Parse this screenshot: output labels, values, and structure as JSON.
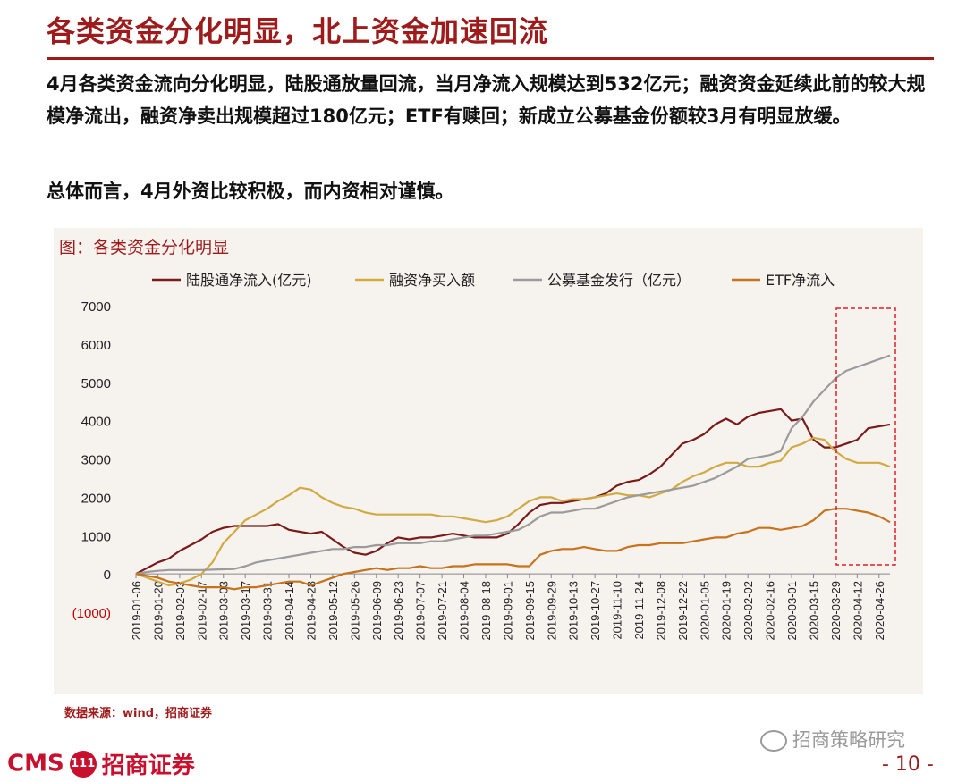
{
  "header": {
    "title": "各类资金分化明显，北上资金加速回流"
  },
  "body": {
    "paragraph1": "4月各类资金流向分化明显，陆股通放量回流，当月净流入规模达到532亿元；融资资金延续此前的较大规模净流出，融资净卖出规模超过180亿元；ETF有赎回；新成立公募基金份额较3月有明显放缓。",
    "paragraph2": "总体而言，4月外资比较积极，而内资相对谨慎。"
  },
  "chart_caption": "图：各类资金分化明显",
  "source": "数据来源：wind，招商证券",
  "watermark": "招商策略研究",
  "logo": {
    "cms": "CMS",
    "badge": "111",
    "name": "招商证券"
  },
  "page_number": "- 10 -",
  "colors": {
    "accent": "#9e1b1b",
    "series1": "#7a1a1a",
    "series2": "#d2aa42",
    "series3": "#9b9b9b",
    "series4": "#c8721c",
    "highlight_box": "#e0202a"
  },
  "chart_data": {
    "type": "line",
    "title": "",
    "xlabel": "",
    "ylabel": "",
    "ylim": [
      -1000,
      7000
    ],
    "yticks": [
      "(1000)",
      "0",
      "1000",
      "2000",
      "3000",
      "4000",
      "5000",
      "6000",
      "7000"
    ],
    "ytick_values": [
      -1000,
      0,
      1000,
      2000,
      3000,
      4000,
      5000,
      6000,
      7000
    ],
    "x_tick_labels": [
      "2019-01-06",
      "2019-01-20",
      "2019-02-03",
      "2019-02-17",
      "2019-03-03",
      "2019-03-17",
      "2019-03-31",
      "2019-04-14",
      "2019-04-28",
      "2019-05-12",
      "2019-05-26",
      "2019-06-09",
      "2019-06-23",
      "2019-07-07",
      "2019-07-21",
      "2019-08-04",
      "2019-08-18",
      "2019-09-01",
      "2019-09-15",
      "2019-09-29",
      "2019-10-13",
      "2019-10-27",
      "2019-11-10",
      "2019-11-24",
      "2019-12-08",
      "2019-12-22",
      "2020-01-05",
      "2020-01-19",
      "2020-02-02",
      "2020-02-16",
      "2020-03-01",
      "2020-03-15",
      "2020-03-29",
      "2020-04-12",
      "2020-04-26"
    ],
    "x": [
      "2019-01-06",
      "2019-01-13",
      "2019-01-20",
      "2019-01-27",
      "2019-02-03",
      "2019-02-10",
      "2019-02-17",
      "2019-02-24",
      "2019-03-03",
      "2019-03-10",
      "2019-03-17",
      "2019-03-24",
      "2019-03-31",
      "2019-04-07",
      "2019-04-14",
      "2019-04-21",
      "2019-04-28",
      "2019-05-05",
      "2019-05-12",
      "2019-05-19",
      "2019-05-26",
      "2019-06-02",
      "2019-06-09",
      "2019-06-16",
      "2019-06-23",
      "2019-06-30",
      "2019-07-07",
      "2019-07-14",
      "2019-07-21",
      "2019-07-28",
      "2019-08-04",
      "2019-08-11",
      "2019-08-18",
      "2019-08-25",
      "2019-09-01",
      "2019-09-08",
      "2019-09-15",
      "2019-09-22",
      "2019-09-29",
      "2019-10-06",
      "2019-10-13",
      "2019-10-20",
      "2019-10-27",
      "2019-11-03",
      "2019-11-10",
      "2019-11-17",
      "2019-11-24",
      "2019-12-01",
      "2019-12-08",
      "2019-12-15",
      "2019-12-22",
      "2019-12-29",
      "2020-01-05",
      "2020-01-12",
      "2020-01-19",
      "2020-01-26",
      "2020-02-02",
      "2020-02-09",
      "2020-02-16",
      "2020-02-23",
      "2020-03-01",
      "2020-03-08",
      "2020-03-15",
      "2020-03-22",
      "2020-03-29",
      "2020-04-05",
      "2020-04-12",
      "2020-04-19",
      "2020-04-26",
      "2020-05-03"
    ],
    "series": [
      {
        "name": "陆股通净流入(亿元)",
        "color": "#7a1a1a",
        "values": [
          0,
          150,
          300,
          400,
          600,
          750,
          900,
          1100,
          1200,
          1250,
          1250,
          1250,
          1250,
          1300,
          1150,
          1100,
          1050,
          1100,
          900,
          700,
          550,
          500,
          600,
          800,
          950,
          900,
          950,
          950,
          1000,
          1050,
          1000,
          950,
          950,
          950,
          1050,
          1300,
          1600,
          1800,
          1850,
          1850,
          1900,
          1950,
          2000,
          2100,
          2300,
          2400,
          2450,
          2600,
          2800,
          3100,
          3400,
          3500,
          3650,
          3900,
          4050,
          3900,
          4100,
          4200,
          4250,
          4300,
          4000,
          4050,
          3500,
          3300,
          3300,
          3400,
          3500,
          3800,
          3850,
          3900
        ]
      },
      {
        "name": "融资净买入额",
        "color": "#d2aa42",
        "values": [
          0,
          -100,
          -200,
          -300,
          -250,
          -150,
          0,
          300,
          800,
          1100,
          1400,
          1550,
          1700,
          1900,
          2050,
          2250,
          2200,
          2000,
          1850,
          1750,
          1700,
          1600,
          1550,
          1550,
          1550,
          1550,
          1550,
          1550,
          1500,
          1500,
          1450,
          1400,
          1350,
          1400,
          1500,
          1700,
          1900,
          2000,
          2000,
          1900,
          1950,
          1950,
          2000,
          2050,
          2100,
          2050,
          2050,
          2000,
          2100,
          2200,
          2400,
          2550,
          2650,
          2800,
          2900,
          2900,
          2800,
          2800,
          2900,
          2950,
          3300,
          3400,
          3550,
          3500,
          3200,
          3000,
          2900,
          2900,
          2900,
          2800
        ]
      },
      {
        "name": "公募基金发行（亿元）",
        "color": "#9b9b9b",
        "values": [
          0,
          50,
          80,
          100,
          100,
          100,
          100,
          110,
          120,
          130,
          200,
          300,
          350,
          400,
          450,
          500,
          550,
          600,
          650,
          650,
          700,
          700,
          750,
          750,
          800,
          800,
          800,
          850,
          850,
          900,
          950,
          1000,
          1000,
          1050,
          1100,
          1150,
          1300,
          1500,
          1600,
          1600,
          1650,
          1700,
          1700,
          1800,
          1900,
          2000,
          2050,
          2100,
          2150,
          2200,
          2250,
          2300,
          2400,
          2500,
          2650,
          2800,
          3000,
          3050,
          3100,
          3200,
          3800,
          4100,
          4500,
          4800,
          5100,
          5300,
          5400,
          5500,
          5600,
          5700
        ]
      },
      {
        "name": "ETF净流入",
        "color": "#c8721c",
        "values": [
          0,
          -50,
          -100,
          -200,
          -250,
          -300,
          -350,
          -350,
          -350,
          -400,
          -350,
          -350,
          -300,
          -250,
          -200,
          -200,
          -300,
          -200,
          -100,
          0,
          50,
          100,
          150,
          100,
          150,
          150,
          200,
          150,
          150,
          200,
          200,
          250,
          250,
          250,
          250,
          200,
          200,
          500,
          600,
          650,
          650,
          700,
          650,
          600,
          600,
          700,
          750,
          750,
          800,
          800,
          800,
          850,
          900,
          950,
          950,
          1050,
          1100,
          1200,
          1200,
          1150,
          1200,
          1250,
          1400,
          1650,
          1700,
          1700,
          1650,
          1600,
          1500,
          1350
        ]
      }
    ],
    "legend_position": "top",
    "grid": false
  }
}
